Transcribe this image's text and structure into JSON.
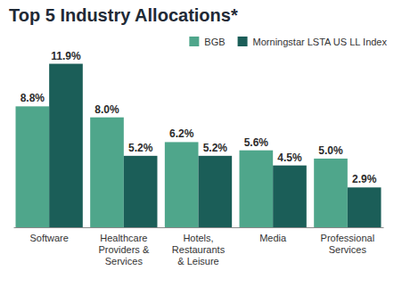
{
  "chart_data": {
    "type": "bar",
    "title": "Top 5 Industry Allocations*",
    "categories": [
      "Software",
      "Healthcare Providers & Services",
      "Hotels, Restaurants & Leisure",
      "Media",
      "Professional Services"
    ],
    "series": [
      {
        "name": "BGB",
        "color": "#4fa68b",
        "values": [
          8.8,
          8.0,
          6.2,
          5.6,
          5.0
        ],
        "value_labels": [
          "8.8%",
          "8.0%",
          "6.2%",
          "5.6%",
          "5.0%"
        ]
      },
      {
        "name": "Morningstar LSTA US LL Index",
        "color": "#1b5e58",
        "values": [
          11.9,
          5.2,
          5.2,
          4.5,
          2.9
        ],
        "value_labels": [
          "11.9%",
          "5.2%",
          "5.2%",
          "4.5%",
          "2.9%"
        ]
      }
    ],
    "ylim": [
      0,
      12
    ],
    "grid": false,
    "legend": "top-right",
    "data_labels": true,
    "tick_labels": "x"
  }
}
